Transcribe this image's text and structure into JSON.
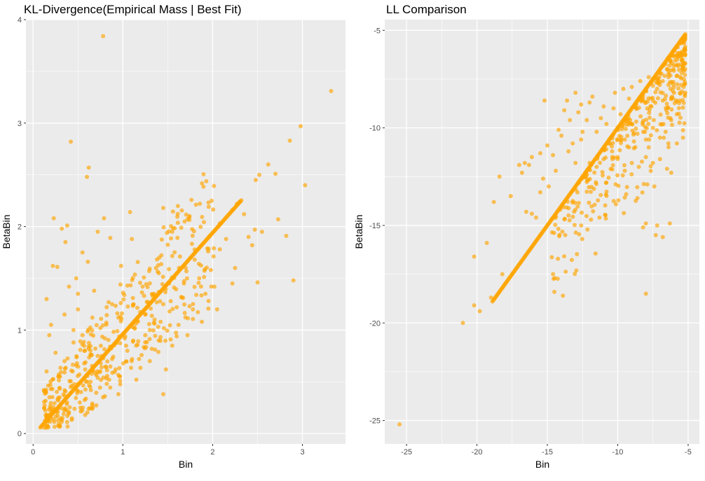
{
  "chart_data": [
    {
      "type": "scatter",
      "title": "KL-Divergence(Empirical Mass | Best Fit)",
      "xlabel": "Bin",
      "ylabel": "BetaBin",
      "xlim": [
        -0.08,
        3.48
      ],
      "ylim": [
        -0.1,
        4.0
      ],
      "xticks": [
        0,
        1,
        2,
        3
      ],
      "yticks": [
        0,
        1,
        2,
        3,
        4
      ],
      "grid": true,
      "point_color": "#FFA500",
      "point_opacity": 0.65,
      "points": [
        [
          0.78,
          3.84
        ],
        [
          3.32,
          3.31
        ],
        [
          2.98,
          2.97
        ],
        [
          0.42,
          2.82
        ],
        [
          2.86,
          2.83
        ],
        [
          0.62,
          2.57
        ],
        [
          0.6,
          2.48
        ],
        [
          2.62,
          2.6
        ],
        [
          3.03,
          2.4
        ],
        [
          2.52,
          2.5
        ],
        [
          2.48,
          2.45
        ],
        [
          2.7,
          2.51
        ],
        [
          2.3,
          2.24
        ],
        [
          2.27,
          2.22
        ],
        [
          2.08,
          2.03
        ],
        [
          2.22,
          2.16
        ],
        [
          2.73,
          2.07
        ],
        [
          2.55,
          1.95
        ],
        [
          2.47,
          1.97
        ],
        [
          2.82,
          1.91
        ],
        [
          2.44,
          1.82
        ],
        [
          2.5,
          1.46
        ],
        [
          2.22,
          1.45
        ],
        [
          2.9,
          1.48
        ],
        [
          1.45,
          2.18
        ],
        [
          1.08,
          2.14
        ],
        [
          0.23,
          2.08
        ],
        [
          0.38,
          2.01
        ],
        [
          0.32,
          1.98
        ],
        [
          0.79,
          2.08
        ],
        [
          0.86,
          1.89
        ],
        [
          0.72,
          1.95
        ],
        [
          0.36,
          1.85
        ],
        [
          1.45,
          0.38
        ],
        [
          0.58,
          0.18
        ],
        [
          0.14,
          0.18
        ],
        [
          0.12,
          0.42
        ],
        [
          0.62,
          0.24
        ],
        [
          0.8,
          0.36
        ],
        [
          0.22,
          1.62
        ],
        [
          0.27,
          1.61
        ],
        [
          0.55,
          1.75
        ],
        [
          0.61,
          1.66
        ],
        [
          1.1,
          1.88
        ],
        [
          1.4,
          1.55
        ],
        [
          1.7,
          1.6
        ],
        [
          1.95,
          1.76
        ],
        [
          1.5,
          1.45
        ],
        [
          1.35,
          1.35
        ],
        [
          1.05,
          1.43
        ],
        [
          1.85,
          1.5
        ],
        [
          1.92,
          1.35
        ],
        [
          2.08,
          1.78
        ],
        [
          1.78,
          1.2
        ],
        [
          1.62,
          1.05
        ],
        [
          1.25,
          1.15
        ],
        [
          0.88,
          1.25
        ],
        [
          0.48,
          1.5
        ],
        [
          0.15,
          1.3
        ],
        [
          0.2,
          1.05
        ],
        [
          0.5,
          1.2
        ],
        [
          0.68,
          1.38
        ],
        [
          1.55,
          0.85
        ],
        [
          1.48,
          0.62
        ],
        [
          1.3,
          0.7
        ],
        [
          1.15,
          0.52
        ],
        [
          0.95,
          0.38
        ],
        [
          1.02,
          0.92
        ],
        [
          0.92,
          0.62
        ],
        [
          0.72,
          0.75
        ],
        [
          0.45,
          0.88
        ],
        [
          0.3,
          0.55
        ],
        [
          0.18,
          0.95
        ],
        [
          0.35,
          1.15
        ],
        [
          1.65,
          1.32
        ],
        [
          2.02,
          1.42
        ],
        [
          1.72,
          0.95
        ],
        [
          1.88,
          1.08
        ],
        [
          2.15,
          1.88
        ],
        [
          1.55,
          1.95
        ],
        [
          1.22,
          1.42
        ],
        [
          0.98,
          1.62
        ],
        [
          0.5,
          1.35
        ],
        [
          0.4,
          1.42
        ],
        [
          1.4,
          0.9
        ],
        [
          1.8,
          1.68
        ],
        [
          2.35,
          2.12
        ],
        [
          2.05,
          1.2
        ],
        [
          2.25,
          1.6
        ],
        [
          2.4,
          1.9
        ],
        [
          1.6,
          1.22
        ],
        [
          1.3,
          1.0
        ],
        [
          0.82,
          0.48
        ],
        [
          0.58,
          0.62
        ],
        [
          0.28,
          0.32
        ],
        [
          0.66,
          1.12
        ],
        [
          1.18,
          0.72
        ],
        [
          1.42,
          1.08
        ],
        [
          0.9,
          0.85
        ],
        [
          0.75,
          1.02
        ],
        [
          0.55,
          0.95
        ],
        [
          0.35,
          0.7
        ],
        [
          0.25,
          0.78
        ],
        [
          0.42,
          0.45
        ],
        [
          1.12,
          1.25
        ],
        [
          1.68,
          1.45
        ],
        [
          1.98,
          1.58
        ],
        [
          1.52,
          1.18
        ],
        [
          0.95,
          1.12
        ],
        [
          0.62,
          0.82
        ],
        [
          0.15,
          0.6
        ],
        [
          0.52,
          0.3
        ],
        [
          0.7,
          0.58
        ],
        [
          1.05,
          0.8
        ],
        [
          1.25,
          0.95
        ],
        [
          1.45,
          1.25
        ],
        [
          0.8,
          0.92
        ],
        [
          0.45,
          1.0
        ],
        [
          0.38,
          0.22
        ],
        [
          0.88,
          0.72
        ]
      ],
      "diagonal_band": {
        "from": 0.08,
        "to": 2.32,
        "slope": 0.98,
        "offset": -0.02
      }
    },
    {
      "type": "scatter",
      "title": "LL Comparison",
      "xlabel": "Bin",
      "ylabel": "BetaBin",
      "xlim": [
        -26.55,
        -4.2
      ],
      "ylim": [
        -26.2,
        -4.45
      ],
      "xticks": [
        -25,
        -20,
        -15,
        -10,
        -5
      ],
      "yticks": [
        -5,
        -10,
        -15,
        -20,
        -25
      ],
      "grid": true,
      "point_color": "#FFA500",
      "point_opacity": 0.65,
      "points": [
        [
          -25.5,
          -25.2
        ],
        [
          -21,
          -20
        ],
        [
          -20.2,
          -19.1
        ],
        [
          -19.8,
          -19.4
        ],
        [
          -19,
          -18.7
        ],
        [
          -20.2,
          -16.6
        ],
        [
          -19.3,
          -15.9
        ],
        [
          -18.8,
          -13.8
        ],
        [
          -18.4,
          -12.5
        ],
        [
          -18.2,
          -17.5
        ],
        [
          -17.6,
          -13.5
        ],
        [
          -17,
          -11.9
        ],
        [
          -16.8,
          -12.3
        ],
        [
          -16.6,
          -11.8
        ],
        [
          -16.3,
          -11.9
        ],
        [
          -16.1,
          -11.5
        ],
        [
          -16.1,
          -14.4
        ],
        [
          -15.8,
          -14.6
        ],
        [
          -15.5,
          -11.3
        ],
        [
          -15.5,
          -13.3
        ],
        [
          -15.2,
          -8.6
        ],
        [
          -13.5,
          -11.2
        ],
        [
          -13.8,
          -9.1
        ],
        [
          -14,
          -10.4
        ],
        [
          -13,
          -8.2
        ],
        [
          -12,
          -8.7
        ],
        [
          -13.2,
          -10.8
        ],
        [
          -12.5,
          -10.2
        ],
        [
          -12,
          -11.8
        ],
        [
          -11.5,
          -12.0
        ],
        [
          -11,
          -11.6
        ],
        [
          -10.5,
          -12.1
        ],
        [
          -10,
          -11.5
        ],
        [
          -9.5,
          -12.2
        ],
        [
          -9,
          -11.8
        ],
        [
          -8.5,
          -12.0
        ],
        [
          -8,
          -11.5
        ],
        [
          -7.5,
          -11.8
        ],
        [
          -7,
          -11.6
        ],
        [
          -6.5,
          -12.1
        ],
        [
          -6.2,
          -12.3
        ],
        [
          -9.4,
          -13.4
        ],
        [
          -8.6,
          -13.6
        ],
        [
          -7.9,
          -12.9
        ],
        [
          -7.4,
          -13.0
        ],
        [
          -8,
          -18.5
        ],
        [
          -8.2,
          -15.1
        ],
        [
          -8,
          -14.9
        ],
        [
          -7.2,
          -15.0
        ],
        [
          -7.3,
          -15.5
        ],
        [
          -6.8,
          -15.6
        ],
        [
          -6.3,
          -14.9
        ],
        [
          -11.3,
          -14.6
        ],
        [
          -11.9,
          -14.7
        ],
        [
          -10.6,
          -10.6
        ],
        [
          -11.2,
          -9.5
        ],
        [
          -10.3,
          -9.0
        ],
        [
          -9.8,
          -9.3
        ],
        [
          -9.2,
          -8.5
        ],
        [
          -8.7,
          -9.0
        ],
        [
          -8.2,
          -8.3
        ],
        [
          -7.6,
          -8.9
        ],
        [
          -7.2,
          -8.0
        ],
        [
          -6.8,
          -8.6
        ],
        [
          -6.4,
          -7.8
        ],
        [
          -6.0,
          -8.2
        ],
        [
          -5.6,
          -8.6
        ],
        [
          -5.4,
          -7.0
        ],
        [
          -5.3,
          -7.5
        ],
        [
          -5.8,
          -9.3
        ],
        [
          -6.2,
          -9.6
        ],
        [
          -6.6,
          -10.2
        ],
        [
          -7.0,
          -10.5
        ],
        [
          -7.5,
          -10.0
        ],
        [
          -8.0,
          -10.6
        ],
        [
          -8.6,
          -10.3
        ],
        [
          -9.0,
          -9.8
        ],
        [
          -9.5,
          -10.6
        ],
        [
          -10.0,
          -10.0
        ],
        [
          -10.8,
          -9.8
        ],
        [
          -11.5,
          -10.2
        ],
        [
          -12.2,
          -9.6
        ],
        [
          -12.8,
          -9.2
        ],
        [
          -13.4,
          -9.6
        ],
        [
          -14.2,
          -10.1
        ],
        [
          -14.6,
          -11.4
        ],
        [
          -15.0,
          -10.9
        ],
        [
          -13.6,
          -8.6
        ],
        [
          -12.6,
          -8.8
        ],
        [
          -11.8,
          -8.4
        ],
        [
          -11.0,
          -8.9
        ],
        [
          -10.2,
          -8.2
        ],
        [
          -9.6,
          -8.0
        ],
        [
          -9.0,
          -7.9
        ],
        [
          -8.4,
          -7.6
        ],
        [
          -7.8,
          -7.4
        ],
        [
          -7.0,
          -7.2
        ],
        [
          -6.5,
          -7.0
        ],
        [
          -6.0,
          -6.8
        ],
        [
          -5.5,
          -7.8
        ],
        [
          -5.2,
          -8.2
        ],
        [
          -5.8,
          -10.8
        ],
        [
          -6.4,
          -10.8
        ],
        [
          -7.8,
          -11.0
        ],
        [
          -9.2,
          -11.0
        ],
        [
          -10.4,
          -11.2
        ],
        [
          -12.6,
          -10.6
        ],
        [
          -13.0,
          -11.8
        ],
        [
          -14.4,
          -12.2
        ],
        [
          -15.3,
          -12.6
        ],
        [
          -14.9,
          -13.0
        ],
        [
          -16.5,
          -14.3
        ]
      ],
      "diagonal_band": {
        "from": -18.9,
        "to": -5.2,
        "slope": 1.0,
        "offset": 0.0
      }
    }
  ]
}
